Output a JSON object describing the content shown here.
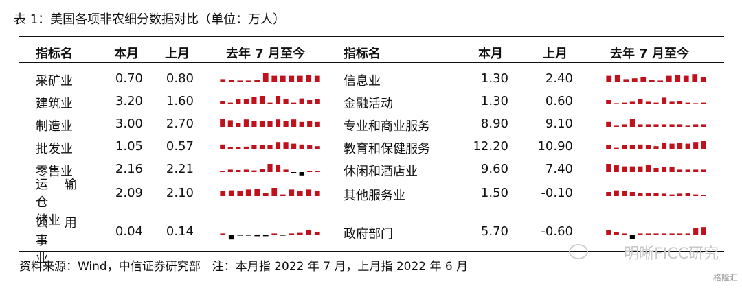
{
  "caption": "表 1：美国各项非农细分数据对比（单位：万人）",
  "headers": {
    "name": "指标名",
    "this_month": "本月",
    "last_month": "上月",
    "trend": "去年 7 月至今"
  },
  "colors": {
    "positive": "#c0121c",
    "negative": "#000000"
  },
  "chart_data": {
    "type": "table",
    "columns": [
      "指标名",
      "本月",
      "上月",
      "去年 7 月至今"
    ],
    "left_rows": [
      {
        "name": "采矿业",
        "this": "0.70",
        "last": "0.80",
        "spark": [
          0.3,
          0.25,
          0.1,
          0.1,
          0.2,
          1.0,
          0.7,
          0.7,
          0.7,
          0.7,
          0.75,
          0.7
        ]
      },
      {
        "name": "建筑业",
        "this": "3.20",
        "last": "1.60",
        "spark": [
          0.4,
          0.2,
          0.6,
          0.6,
          0.9,
          1.0,
          0.2,
          1.0,
          0.6,
          0.2,
          0.7,
          0.5,
          0.6
        ]
      },
      {
        "name": "制造业",
        "this": "3.00",
        "last": "2.70",
        "spark": [
          1.0,
          0.8,
          0.5,
          0.9,
          0.7,
          0.7,
          0.7,
          0.9,
          0.7,
          0.9,
          0.6,
          0.7,
          0.6
        ]
      },
      {
        "name": "批发业",
        "this": "1.05",
        "last": "0.57",
        "spark": [
          0.6,
          0.3,
          0.3,
          0.35,
          0.5,
          0.55,
          0.5,
          0.9,
          0.9,
          0.7,
          0.6,
          0.5,
          0.4
        ]
      },
      {
        "name": "零售业",
        "this": "2.16",
        "last": "2.21",
        "spark": [
          0.1,
          0.3,
          0.25,
          0.3,
          0.2,
          0.4,
          1.0,
          0.9,
          0.3,
          -0.1,
          -0.4,
          0.1,
          0.1
        ]
      },
      {
        "name_l1": "运 输 仓",
        "name_l2": "储业",
        "this": "2.09",
        "last": "2.10",
        "spark": [
          0.6,
          0.7,
          0.6,
          0.8,
          0.9,
          0.4,
          1.0,
          0.2,
          0.8,
          0.6,
          0.8,
          0.6
        ]
      },
      {
        "name_l1": "公 用 事",
        "name_l2": "业",
        "this": "0.04",
        "last": "0.14",
        "spark": [
          0.1,
          -0.6,
          -0.1,
          -0.1,
          -0.2,
          -0.2,
          0.1,
          -0.1,
          0.1,
          0.2,
          0.5,
          0.3
        ]
      }
    ],
    "right_rows": [
      {
        "name": "信息业",
        "this": "1.30",
        "last": "2.40",
        "spark": [
          0.7,
          0.8,
          0.3,
          0.4,
          0.5,
          0.2,
          0.1,
          0.7,
          0.8,
          0.7,
          0.9,
          0.5
        ]
      },
      {
        "name": "金融活动",
        "this": "1.30",
        "last": "0.60",
        "spark": [
          0.5,
          0.1,
          0.2,
          0.3,
          0.6,
          0.3,
          0.2,
          0.8,
          0.3,
          0.4,
          0.2,
          0.1,
          0.2
        ]
      },
      {
        "name": "专业和商业服务",
        "this": "8.90",
        "last": "9.10",
        "spark": [
          0.6,
          0.1,
          0.3,
          1.0,
          0.3,
          0.3,
          0.3,
          0.3,
          0.3,
          0.3,
          0.1,
          0.3,
          0.3
        ]
      },
      {
        "name": "教育和保健服务",
        "this": "12.20",
        "last": "10.90",
        "spark": [
          0.5,
          0.2,
          0.5,
          0.5,
          0.6,
          0.5,
          0.4,
          0.8,
          0.7,
          0.8,
          0.7,
          0.9,
          1.0
        ]
      },
      {
        "name": "休闲和酒店业",
        "this": "9.60",
        "last": "7.40",
        "spark": [
          1.0,
          0.9,
          0.7,
          0.7,
          0.7,
          0.9,
          0.5,
          0.6,
          0.6,
          0.3,
          0.3,
          0.3,
          0.3
        ]
      },
      {
        "name": "其他服务业",
        "this": "1.50",
        "last": "-0.10",
        "spark": [
          0.5,
          0.7,
          0.6,
          0.5,
          0.4,
          0.4,
          0.4,
          0.3,
          0.2,
          0.3,
          0.4,
          0.2,
          0.1
        ]
      },
      {
        "name": "政府部门",
        "this": "5.70",
        "last": "-0.60",
        "spark": [
          0.5,
          0.3,
          0.1,
          -0.5,
          0.1,
          0.1,
          0.1,
          0.1,
          0.1,
          0.1,
          0.1,
          0.8,
          0.9
        ]
      }
    ]
  },
  "source": "资料来源：Wind，中信证券研究部　注：本月指 2022 年 7 月，上月指 2022 年 6 月",
  "watermark": "明晰FICC研究",
  "corner_logo": "格隆汇"
}
